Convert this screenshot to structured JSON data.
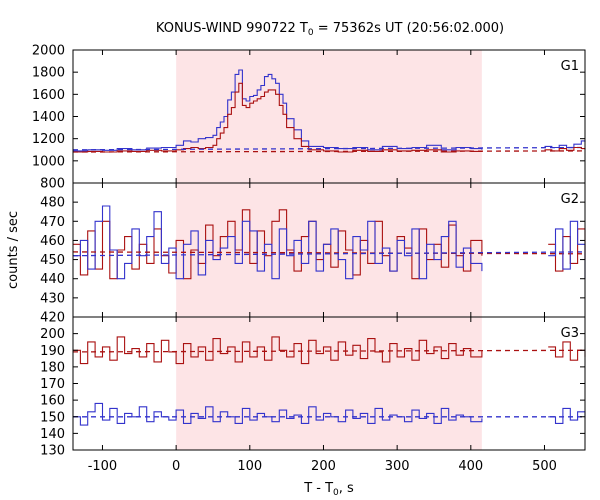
{
  "chart_data": {
    "type": "line",
    "title_main": "KONUS-WIND 990722 T",
    "title_sub": "0",
    "title_rest": " = 75362s UT (20:56:02.000)",
    "xlabel_main": "T - T",
    "xlabel_sub": "0",
    "xlabel_rest": ", s",
    "ylabel": "counts / sec",
    "xlim": [
      -140,
      555
    ],
    "x_ticks": [
      -100,
      0,
      100,
      200,
      300,
      400,
      500
    ],
    "x_tick_labels": [
      "-100",
      "0",
      "100",
      "200",
      "300",
      "400",
      "500"
    ],
    "shaded_interval": [
      0,
      415
    ],
    "panels": [
      {
        "name": "G1",
        "ylim": [
          800,
          2000
        ],
        "y_ticks": [
          800,
          1000,
          1200,
          1400,
          1600,
          1800,
          2000
        ],
        "y_tick_labels": [
          "800",
          "1000",
          "1200",
          "1400",
          "1600",
          "1800",
          "2000"
        ],
        "show_bottom_label": true,
        "series": [
          {
            "color": "#3333cc",
            "x": [
              -140,
              -120,
              -100,
              -80,
              -60,
              -40,
              -20,
              0,
              10,
              20,
              30,
              40,
              50,
              55,
              60,
              65,
              70,
              75,
              80,
              85,
              90,
              95,
              100,
              105,
              110,
              115,
              120,
              125,
              130,
              135,
              140,
              145,
              150,
              160,
              170,
              180,
              200,
              220,
              240,
              260,
              280,
              300,
              320,
              340,
              360,
              380,
              400,
              415
            ],
            "y": [
              1090,
              1100,
              1095,
              1110,
              1100,
              1115,
              1120,
              1140,
              1180,
              1170,
              1200,
              1210,
              1230,
              1300,
              1350,
              1400,
              1550,
              1620,
              1780,
              1820,
              1560,
              1540,
              1580,
              1590,
              1640,
              1680,
              1760,
              1780,
              1740,
              1700,
              1600,
              1520,
              1380,
              1280,
              1180,
              1130,
              1120,
              1110,
              1120,
              1100,
              1130,
              1110,
              1120,
              1140,
              1100,
              1120,
              1110,
              1100
            ]
          },
          {
            "color": "#aa1111",
            "x": [
              -140,
              -120,
              -100,
              -80,
              -60,
              -40,
              -20,
              0,
              10,
              20,
              30,
              40,
              50,
              55,
              60,
              65,
              70,
              75,
              80,
              85,
              90,
              95,
              100,
              105,
              110,
              115,
              120,
              125,
              130,
              135,
              140,
              145,
              150,
              160,
              170,
              180,
              200,
              220,
              240,
              260,
              280,
              300,
              320,
              340,
              360,
              380,
              400,
              415
            ],
            "y": [
              1080,
              1085,
              1080,
              1090,
              1085,
              1095,
              1090,
              1100,
              1110,
              1120,
              1110,
              1120,
              1140,
              1200,
              1250,
              1300,
              1420,
              1480,
              1620,
              1700,
              1500,
              1480,
              1520,
              1540,
              1560,
              1580,
              1620,
              1640,
              1640,
              1600,
              1500,
              1420,
              1300,
              1200,
              1130,
              1100,
              1090,
              1080,
              1095,
              1085,
              1100,
              1090,
              1095,
              1100,
              1080,
              1090,
              1085,
              1080
            ]
          },
          {
            "color": "#3333cc",
            "dashed": true,
            "x": [
              -140,
              555
            ],
            "y": [
              1100,
              1120
            ]
          },
          {
            "color": "#aa1111",
            "dashed": true,
            "x": [
              -140,
              555
            ],
            "y": [
              1080,
              1090
            ]
          },
          {
            "color": "#3333cc",
            "x": [
              500,
              510,
              520,
              530,
              540,
              550,
              555
            ],
            "y": [
              1130,
              1120,
              1140,
              1120,
              1150,
              1180,
              1170
            ]
          },
          {
            "color": "#aa1111",
            "x": [
              500,
              510,
              520,
              530,
              540,
              550,
              555
            ],
            "y": [
              1100,
              1090,
              1110,
              1095,
              1120,
              1110,
              1100
            ]
          }
        ]
      },
      {
        "name": "G2",
        "ylim": [
          420,
          490
        ],
        "y_ticks": [
          420,
          430,
          440,
          450,
          460,
          470,
          480
        ],
        "y_tick_labels": [
          "420",
          "430",
          "440",
          "450",
          "460",
          "470",
          "480"
        ],
        "show_bottom_label": true,
        "series": [
          {
            "color": "#aa1111",
            "x": [
              -140,
              -130,
              -120,
              -110,
              -100,
              -90,
              -80,
              -70,
              -60,
              -50,
              -40,
              -30,
              -20,
              -10,
              0,
              10,
              20,
              30,
              40,
              50,
              60,
              70,
              80,
              90,
              100,
              110,
              120,
              130,
              140,
              150,
              160,
              170,
              180,
              190,
              200,
              210,
              220,
              230,
              240,
              250,
              260,
              270,
              280,
              290,
              300,
              310,
              320,
              330,
              340,
              350,
              360,
              370,
              380,
              390,
              400,
              415
            ],
            "y": [
              458,
              442,
              465,
              445,
              470,
              440,
              455,
              462,
              445,
              458,
              448,
              466,
              452,
              443,
              460,
              440,
              455,
              448,
              468,
              452,
              462,
              470,
              455,
              476,
              448,
              465,
              452,
              470,
              476,
              455,
              444,
              462,
              470,
              450,
              458,
              446,
              465,
              455,
              442,
              460,
              448,
              470,
              452,
              444,
              462,
              456,
              440,
              466,
              450,
              458,
              446,
              468,
              452,
              444,
              460,
              452
            ]
          },
          {
            "color": "#3333cc",
            "x": [
              -140,
              -130,
              -120,
              -110,
              -100,
              -90,
              -80,
              -70,
              -60,
              -50,
              -40,
              -30,
              -20,
              -10,
              0,
              10,
              20,
              30,
              40,
              50,
              60,
              70,
              80,
              90,
              100,
              110,
              120,
              130,
              140,
              150,
              160,
              170,
              180,
              190,
              200,
              210,
              220,
              230,
              240,
              250,
              260,
              270,
              280,
              290,
              300,
              310,
              320,
              330,
              340,
              350,
              360,
              370,
              380,
              390,
              400,
              415
            ],
            "y": [
              452,
              460,
              445,
              470,
              478,
              455,
              440,
              448,
              466,
              452,
              462,
              475,
              448,
              456,
              440,
              458,
              465,
              442,
              460,
              450,
              456,
              462,
              448,
              470,
              465,
              444,
              458,
              440,
              466,
              452,
              460,
              448,
              470,
              444,
              458,
              466,
              450,
              440,
              462,
              455,
              470,
              448,
              456,
              444,
              460,
              452,
              466,
              440,
              458,
              450,
              462,
              470,
              446,
              456,
              448,
              444
            ]
          },
          {
            "color": "#aa1111",
            "dashed": true,
            "x": [
              -140,
              555
            ],
            "y": [
              454,
              453
            ]
          },
          {
            "color": "#3333cc",
            "dashed": true,
            "x": [
              -140,
              555
            ],
            "y": [
              452,
              454
            ]
          },
          {
            "color": "#aa1111",
            "x": [
              505,
              515,
              525,
              535,
              545,
              555
            ],
            "y": [
              458,
              444,
              462,
              448,
              466,
              450
            ]
          },
          {
            "color": "#3333cc",
            "x": [
              505,
              515,
              525,
              535,
              545,
              555
            ],
            "y": [
              452,
              466,
              445,
              470,
              458,
              440
            ]
          }
        ]
      },
      {
        "name": "G3",
        "ylim": [
          130,
          210
        ],
        "y_ticks": [
          130,
          140,
          150,
          160,
          170,
          180,
          190,
          200
        ],
        "y_tick_labels": [
          "130",
          "140",
          "150",
          "160",
          "170",
          "180",
          "190",
          "200"
        ],
        "show_bottom_label": false,
        "series": [
          {
            "color": "#aa1111",
            "x": [
              -140,
              -130,
              -120,
              -110,
              -100,
              -90,
              -80,
              -70,
              -60,
              -50,
              -40,
              -30,
              -20,
              -10,
              0,
              10,
              20,
              30,
              40,
              50,
              60,
              70,
              80,
              90,
              100,
              110,
              120,
              130,
              140,
              150,
              160,
              170,
              180,
              190,
              200,
              210,
              220,
              230,
              240,
              250,
              260,
              270,
              280,
              290,
              300,
              310,
              320,
              330,
              340,
              350,
              360,
              370,
              380,
              390,
              400,
              415
            ],
            "y": [
              190,
              182,
              195,
              186,
              192,
              184,
              198,
              188,
              191,
              186,
              194,
              183,
              196,
              189,
              182,
              194,
              186,
              192,
              184,
              197,
              188,
              192,
              183,
              195,
              186,
              192,
              184,
              198,
              190,
              186,
              194,
              182,
              196,
              188,
              192,
              184,
              195,
              187,
              193,
              185,
              197,
              189,
              183,
              194,
              186,
              191,
              184,
              196,
              188,
              192,
              185,
              194,
              187,
              191,
              186,
              190
            ]
          },
          {
            "color": "#3333cc",
            "x": [
              -140,
              -130,
              -120,
              -110,
              -100,
              -90,
              -80,
              -70,
              -60,
              -50,
              -40,
              -30,
              -20,
              -10,
              0,
              10,
              20,
              30,
              40,
              50,
              60,
              70,
              80,
              90,
              100,
              110,
              120,
              130,
              140,
              150,
              160,
              170,
              180,
              190,
              200,
              210,
              220,
              230,
              240,
              250,
              260,
              270,
              280,
              290,
              300,
              310,
              320,
              330,
              340,
              350,
              360,
              370,
              380,
              390,
              400,
              415
            ],
            "y": [
              150,
              145,
              153,
              158,
              148,
              155,
              146,
              152,
              150,
              156,
              147,
              153,
              150,
              148,
              154,
              146,
              152,
              149,
              156,
              147,
              153,
              150,
              146,
              155,
              148,
              152,
              150,
              147,
              154,
              149,
              151,
              146,
              156,
              148,
              152,
              150,
              147,
              154,
              149,
              152,
              146,
              155,
              148,
              151,
              150,
              147,
              154,
              149,
              152,
              146,
              155,
              148,
              151,
              150,
              147,
              149
            ]
          },
          {
            "color": "#aa1111",
            "dashed": true,
            "x": [
              -140,
              555
            ],
            "y": [
              189,
              190
            ]
          },
          {
            "color": "#3333cc",
            "dashed": true,
            "x": [
              -140,
              555
            ],
            "y": [
              150,
              150
            ]
          },
          {
            "color": "#aa1111",
            "x": [
              505,
              515,
              525,
              535,
              545,
              555
            ],
            "y": [
              192,
              186,
              195,
              184,
              190,
              186
            ]
          },
          {
            "color": "#3333cc",
            "x": [
              505,
              515,
              525,
              535,
              545,
              555
            ],
            "y": [
              150,
              146,
              155,
              148,
              153,
              149
            ]
          }
        ]
      }
    ]
  }
}
